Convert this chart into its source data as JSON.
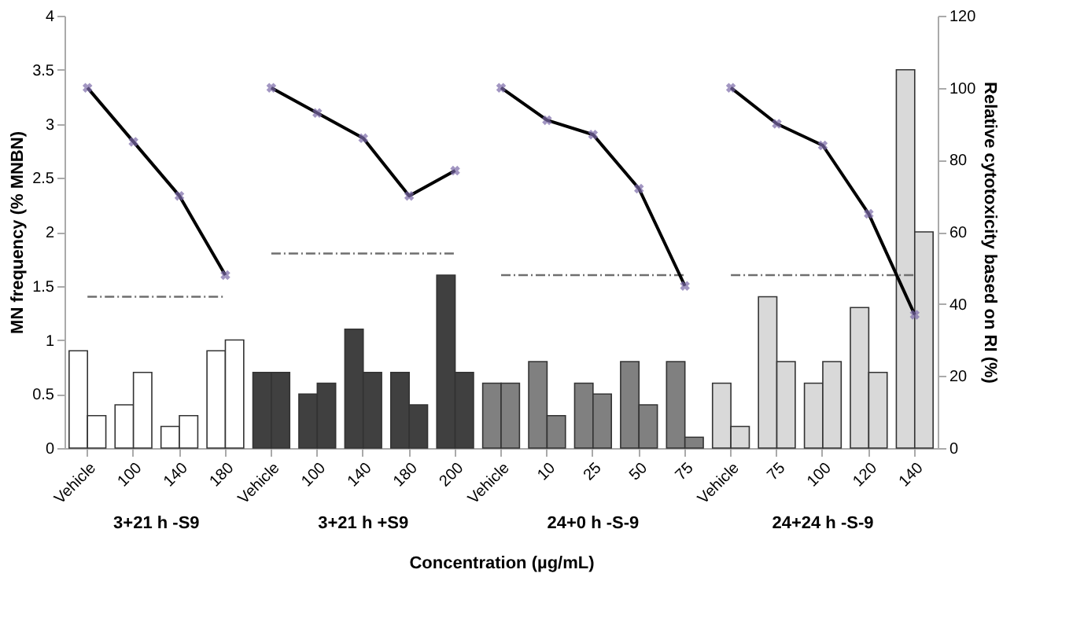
{
  "chart_data": {
    "type": "bar",
    "xlabel": "Concentration (µg/mL)",
    "ylabel": "MN frequency (% MNBN)",
    "y2label": "Relative cytotoxicity based on RI (%)",
    "categories": [
      "Vehicle",
      "100",
      "140",
      "180",
      "Vehicle",
      "100",
      "140",
      "180",
      "200",
      "Vehicle",
      "10",
      "25",
      "50",
      "75",
      "Vehicle",
      "75",
      "100",
      "120",
      "140"
    ],
    "series": [
      {
        "colors": [
          "#ffffff",
          "#ffffff",
          "#ffffff",
          "#ffffff",
          "#404040",
          "#404040",
          "#404040",
          "#404040",
          "#404040",
          "#808080",
          "#808080",
          "#808080",
          "#808080",
          "#808080",
          "#d9d9d9",
          "#d9d9d9",
          "#d9d9d9",
          "#d9d9d9",
          "#d9d9d9"
        ],
        "values": [
          0.9,
          0.4,
          0.2,
          0.9,
          0.7,
          0.5,
          1.1,
          0.7,
          1.6,
          0.6,
          0.8,
          0.6,
          0.8,
          0.8,
          0.6,
          1.4,
          0.6,
          1.3,
          3.5
        ]
      },
      {
        "colors": [
          "#ffffff",
          "#ffffff",
          "#ffffff",
          "#ffffff",
          "#404040",
          "#404040",
          "#404040",
          "#404040",
          "#404040",
          "#808080",
          "#808080",
          "#808080",
          "#808080",
          "#808080",
          "#d9d9d9",
          "#d9d9d9",
          "#d9d9d9",
          "#d9d9d9",
          "#d9d9d9"
        ],
        "values": [
          0.3,
          0.7,
          0.3,
          1.0,
          0.7,
          0.6,
          0.7,
          0.4,
          0.7,
          0.6,
          0.3,
          0.5,
          0.4,
          0.1,
          0.2,
          0.8,
          0.8,
          0.7,
          2.0
        ]
      },
      {
        "type": "line",
        "line_style": "dashed",
        "color": "#6f6f6f",
        "values": [
          1.4,
          1.4,
          1.4,
          1.4,
          null,
          null,
          null,
          null,
          null,
          null,
          null,
          null,
          null,
          null,
          null,
          null,
          null,
          null,
          null
        ]
      },
      {
        "type": "line",
        "line_style": "dashed",
        "color": "#6f6f6f",
        "values": [
          null,
          null,
          null,
          null,
          1.8,
          1.8,
          1.8,
          1.8,
          1.8,
          null,
          null,
          null,
          null,
          null,
          null,
          null,
          null,
          null,
          null
        ]
      },
      {
        "type": "line",
        "line_style": "dashed",
        "color": "#6f6f6f",
        "values": [
          null,
          null,
          null,
          null,
          null,
          null,
          null,
          null,
          null,
          1.6,
          1.6,
          1.6,
          1.6,
          1.6,
          null,
          null,
          null,
          null,
          null
        ]
      },
      {
        "type": "line",
        "line_style": "dashed",
        "color": "#6f6f6f",
        "values": [
          null,
          null,
          null,
          null,
          null,
          null,
          null,
          null,
          null,
          null,
          null,
          null,
          null,
          null,
          1.6,
          1.6,
          1.6,
          1.6,
          1.6
        ]
      },
      {
        "type": "line",
        "axis": "y2",
        "marker": "cross",
        "line_style": "solid",
        "color": "#000000",
        "values": [
          100,
          85,
          70,
          48,
          null,
          null,
          null,
          null,
          null,
          null,
          null,
          null,
          null,
          null,
          null,
          null,
          null,
          null,
          null
        ]
      },
      {
        "type": "line",
        "axis": "y2",
        "marker": "cross",
        "line_style": "solid",
        "color": "#000000",
        "values": [
          null,
          null,
          null,
          null,
          100,
          93,
          86,
          70,
          77,
          null,
          null,
          null,
          null,
          null,
          null,
          null,
          null,
          null,
          null
        ]
      },
      {
        "type": "line",
        "axis": "y2",
        "marker": "cross",
        "line_style": "solid",
        "color": "#000000",
        "values": [
          null,
          null,
          null,
          null,
          null,
          null,
          null,
          null,
          null,
          100,
          91,
          87,
          72,
          45,
          null,
          null,
          null,
          null,
          null
        ]
      },
      {
        "type": "line",
        "axis": "y2",
        "marker": "cross",
        "line_style": "solid",
        "color": "#000000",
        "values": [
          null,
          null,
          null,
          null,
          null,
          null,
          null,
          null,
          null,
          null,
          null,
          null,
          null,
          null,
          100,
          90,
          84,
          65,
          37
        ]
      }
    ],
    "annotations": [
      "3+21 h -S9",
      "3+21 h +S9",
      "24+0 h -S-9",
      "24+24 h -S-9"
    ],
    "ylim": [
      0,
      4
    ],
    "yticks": [
      0,
      0.5,
      1,
      1.5,
      2,
      2.5,
      3,
      3.5,
      4
    ],
    "y2lim": [
      0,
      120
    ],
    "y2ticks": [
      0,
      20,
      40,
      60,
      80,
      100,
      120
    ]
  }
}
